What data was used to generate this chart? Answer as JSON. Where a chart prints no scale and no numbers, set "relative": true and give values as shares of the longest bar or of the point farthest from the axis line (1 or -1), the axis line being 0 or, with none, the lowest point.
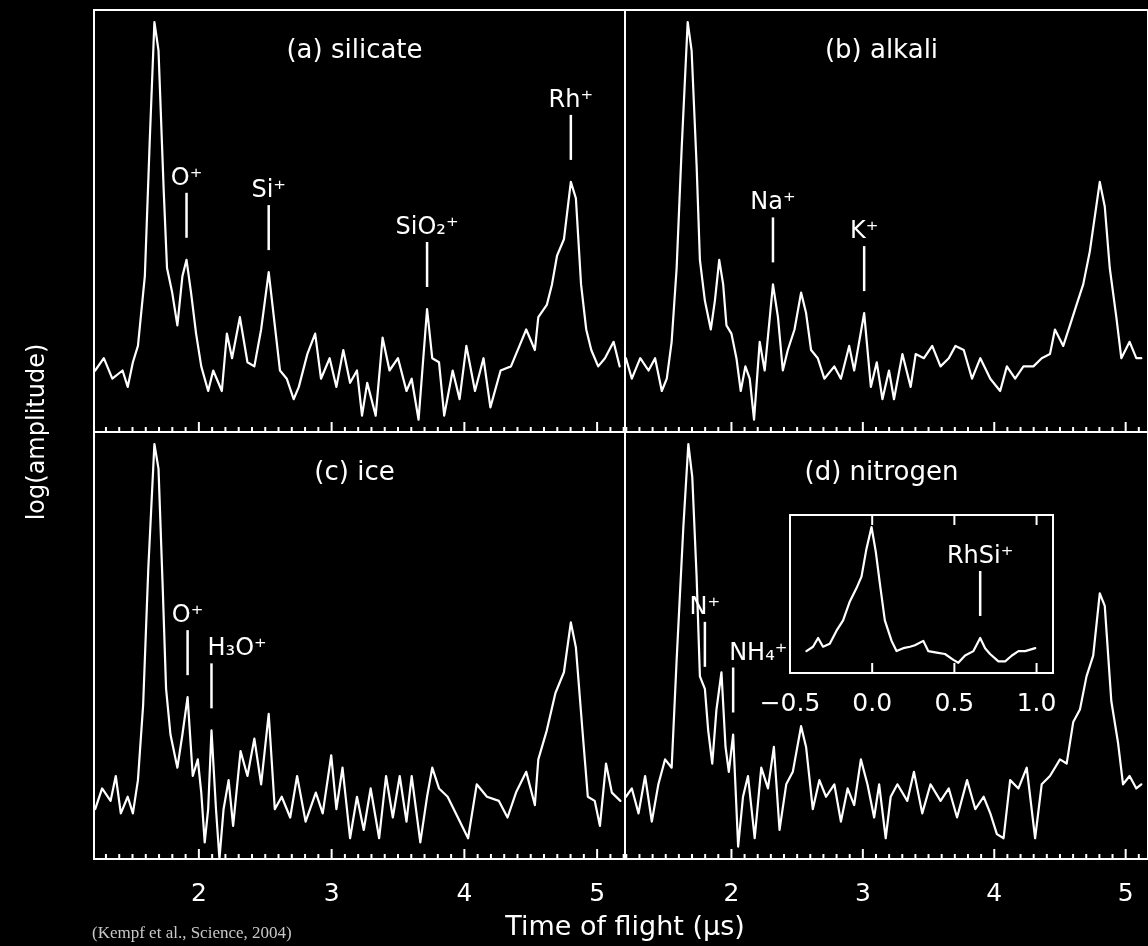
{
  "chart_data": [
    {
      "type": "line",
      "title": "(a) silicate",
      "ylabel": "log(amplitude)",
      "relative": true,
      "tick_labels": false,
      "color": "#ffffff",
      "xlim": [
        1.21,
        5.21
      ],
      "xticks": [
        {
          "value": 1.3,
          "label": null
        },
        {
          "value": 1.4,
          "label": null
        },
        {
          "value": 1.5,
          "label": null
        },
        {
          "value": 1.6,
          "label": null
        },
        {
          "value": 1.7,
          "label": null
        },
        {
          "value": 1.8,
          "label": null
        },
        {
          "value": 1.9,
          "label": null
        },
        2,
        {
          "value": 2.1,
          "label": null
        },
        {
          "value": 2.2,
          "label": null
        },
        {
          "value": 2.3,
          "label": null
        },
        {
          "value": 2.4,
          "label": null
        },
        {
          "value": 2.5,
          "label": null
        },
        {
          "value": 2.6,
          "label": null
        },
        {
          "value": 2.7,
          "label": null
        },
        {
          "value": 2.8,
          "label": null
        },
        {
          "value": 2.9,
          "label": null
        },
        3,
        {
          "value": 3.1,
          "label": null
        },
        {
          "value": 3.2,
          "label": null
        },
        {
          "value": 3.3,
          "label": null
        },
        {
          "value": 3.4,
          "label": null
        },
        {
          "value": 3.5,
          "label": null
        },
        {
          "value": 3.6,
          "label": null
        },
        {
          "value": 3.7,
          "label": null
        },
        {
          "value": 3.8,
          "label": null
        },
        {
          "value": 3.9,
          "label": null
        },
        4,
        {
          "value": 4.1,
          "label": null
        },
        {
          "value": 4.2,
          "label": null
        },
        {
          "value": 4.3,
          "label": null
        },
        {
          "value": 4.4,
          "label": null
        },
        {
          "value": 4.5,
          "label": null
        },
        {
          "value": 4.6,
          "label": null
        },
        {
          "value": 4.7,
          "label": null
        },
        {
          "value": 4.8,
          "label": null
        },
        {
          "value": 4.9,
          "label": null
        },
        5,
        {
          "value": 5.1,
          "label": null
        },
        {
          "value": 5.2,
          "label": null
        }
      ],
      "x": [
        1.219,
        1.284,
        1.348,
        1.425,
        1.464,
        1.503,
        1.541,
        1.593,
        1.631,
        1.665,
        1.696,
        1.735,
        1.76,
        1.799,
        1.838,
        1.876,
        1.907,
        1.941,
        1.979,
        2.018,
        2.07,
        2.108,
        2.173,
        2.211,
        2.25,
        2.309,
        2.366,
        2.418,
        2.469,
        2.526,
        2.572,
        2.611,
        2.662,
        2.714,
        2.753,
        2.817,
        2.876,
        2.92,
        2.985,
        3.036,
        3.088,
        3.139,
        3.191,
        3.229,
        3.268,
        3.332,
        3.384,
        3.436,
        3.5,
        3.564,
        3.603,
        3.655,
        3.719,
        3.758,
        3.809,
        3.848,
        3.912,
        3.964,
        4.015,
        4.08,
        4.144,
        4.196,
        4.273,
        4.351,
        4.415,
        4.466,
        4.531,
        4.557,
        4.621,
        4.66,
        4.698,
        4.75,
        4.802,
        4.84,
        4.879,
        4.918,
        4.956,
        5.008,
        5.059,
        5.124,
        5.17
      ],
      "values": [
        0.15,
        0.18,
        0.13,
        0.15,
        0.11,
        0.17,
        0.21,
        0.38,
        0.72,
        1.0,
        0.93,
        0.59,
        0.4,
        0.34,
        0.26,
        0.38,
        0.42,
        0.34,
        0.24,
        0.16,
        0.1,
        0.15,
        0.1,
        0.24,
        0.18,
        0.28,
        0.17,
        0.16,
        0.25,
        0.39,
        0.26,
        0.15,
        0.13,
        0.08,
        0.11,
        0.19,
        0.24,
        0.13,
        0.18,
        0.11,
        0.2,
        0.12,
        0.15,
        0.04,
        0.12,
        0.04,
        0.23,
        0.15,
        0.18,
        0.1,
        0.13,
        0.03,
        0.3,
        0.18,
        0.17,
        0.04,
        0.15,
        0.08,
        0.21,
        0.1,
        0.18,
        0.06,
        0.15,
        0.16,
        0.21,
        0.25,
        0.2,
        0.28,
        0.31,
        0.36,
        0.43,
        0.47,
        0.61,
        0.57,
        0.36,
        0.25,
        0.2,
        0.16,
        0.18,
        0.22,
        0.16
      ],
      "annotations": [
        {
          "text": "O⁺",
          "x": 1.907,
          "y": 0.42
        },
        {
          "text": "Si⁺",
          "x": 2.526,
          "y": 0.39
        },
        {
          "text": "SiO₂⁺",
          "x": 3.719,
          "y": 0.3
        },
        {
          "text": "Rh⁺",
          "x": 4.802,
          "y": 0.61
        }
      ]
    },
    {
      "type": "line",
      "title": "(b) alkali",
      "relative": true,
      "tick_labels": false,
      "color": "#ffffff",
      "xlim": [
        1.19,
        5.17
      ],
      "xticks": [
        {
          "value": 1.2,
          "label": null
        },
        {
          "value": 1.3,
          "label": null
        },
        {
          "value": 1.4,
          "label": null
        },
        {
          "value": 1.5,
          "label": null
        },
        {
          "value": 1.6,
          "label": null
        },
        {
          "value": 1.7,
          "label": null
        },
        {
          "value": 1.8,
          "label": null
        },
        {
          "value": 1.9,
          "label": null
        },
        2,
        {
          "value": 2.1,
          "label": null
        },
        {
          "value": 2.2,
          "label": null
        },
        {
          "value": 2.3,
          "label": null
        },
        {
          "value": 2.4,
          "label": null
        },
        {
          "value": 2.5,
          "label": null
        },
        {
          "value": 2.6,
          "label": null
        },
        {
          "value": 2.7,
          "label": null
        },
        {
          "value": 2.8,
          "label": null
        },
        {
          "value": 2.9,
          "label": null
        },
        3,
        {
          "value": 3.1,
          "label": null
        },
        {
          "value": 3.2,
          "label": null
        },
        {
          "value": 3.3,
          "label": null
        },
        {
          "value": 3.4,
          "label": null
        },
        {
          "value": 3.5,
          "label": null
        },
        {
          "value": 3.6,
          "label": null
        },
        {
          "value": 3.7,
          "label": null
        },
        {
          "value": 3.8,
          "label": null
        },
        {
          "value": 3.9,
          "label": null
        },
        4,
        {
          "value": 4.1,
          "label": null
        },
        {
          "value": 4.2,
          "label": null
        },
        {
          "value": 4.3,
          "label": null
        },
        {
          "value": 4.4,
          "label": null
        },
        {
          "value": 4.5,
          "label": null
        },
        {
          "value": 4.6,
          "label": null
        },
        {
          "value": 4.7,
          "label": null
        },
        {
          "value": 4.8,
          "label": null
        },
        {
          "value": 4.9,
          "label": null
        },
        5,
        {
          "value": 5.1,
          "label": null
        }
      ],
      "x": [
        1.197,
        1.242,
        1.306,
        1.369,
        1.419,
        1.47,
        1.508,
        1.545,
        1.583,
        1.621,
        1.667,
        1.697,
        1.735,
        1.76,
        1.798,
        1.843,
        1.874,
        1.907,
        1.937,
        1.962,
        2.0,
        2.038,
        2.071,
        2.106,
        2.139,
        2.172,
        2.215,
        2.253,
        2.316,
        2.354,
        2.391,
        2.429,
        2.48,
        2.53,
        2.568,
        2.606,
        2.657,
        2.707,
        2.783,
        2.833,
        2.896,
        2.934,
        3.01,
        3.061,
        3.106,
        3.149,
        3.199,
        3.237,
        3.301,
        3.364,
        3.402,
        3.465,
        3.528,
        3.591,
        3.654,
        3.705,
        3.768,
        3.831,
        3.894,
        3.97,
        4.045,
        4.096,
        4.159,
        4.222,
        4.298,
        4.361,
        4.424,
        4.462,
        4.525,
        4.576,
        4.626,
        4.677,
        4.727,
        4.803,
        4.841,
        4.879,
        4.929,
        4.967,
        5.03,
        5.081,
        5.119
      ],
      "values": [
        0.18,
        0.13,
        0.18,
        0.15,
        0.18,
        0.1,
        0.13,
        0.22,
        0.4,
        0.69,
        1.0,
        0.93,
        0.65,
        0.42,
        0.32,
        0.25,
        0.32,
        0.42,
        0.36,
        0.26,
        0.24,
        0.18,
        0.1,
        0.16,
        0.13,
        0.03,
        0.22,
        0.15,
        0.36,
        0.28,
        0.15,
        0.2,
        0.25,
        0.34,
        0.29,
        0.2,
        0.18,
        0.13,
        0.16,
        0.13,
        0.21,
        0.15,
        0.29,
        0.11,
        0.17,
        0.08,
        0.15,
        0.08,
        0.19,
        0.11,
        0.19,
        0.18,
        0.21,
        0.16,
        0.18,
        0.21,
        0.2,
        0.13,
        0.18,
        0.13,
        0.1,
        0.16,
        0.13,
        0.16,
        0.16,
        0.18,
        0.19,
        0.25,
        0.21,
        0.26,
        0.31,
        0.36,
        0.44,
        0.61,
        0.55,
        0.4,
        0.28,
        0.18,
        0.22,
        0.18,
        0.18
      ],
      "annotations": [
        {
          "text": "Na⁺",
          "x": 2.316,
          "y": 0.36
        },
        {
          "text": "K⁺",
          "x": 3.01,
          "y": 0.29
        }
      ]
    },
    {
      "type": "line",
      "title": "(c) ice",
      "xlabel": "Time of flight (μs)",
      "relative": true,
      "tick_labels": "x",
      "color": "#ffffff",
      "xlim": [
        1.21,
        5.21
      ],
      "xticks": [
        {
          "value": 1.3,
          "label": null
        },
        {
          "value": 1.4,
          "label": null
        },
        {
          "value": 1.5,
          "label": null
        },
        {
          "value": 1.6,
          "label": null
        },
        {
          "value": 1.7,
          "label": null
        },
        {
          "value": 1.8,
          "label": null
        },
        {
          "value": 1.9,
          "label": null
        },
        2,
        {
          "value": 2.1,
          "label": null
        },
        {
          "value": 2.2,
          "label": null
        },
        {
          "value": 2.3,
          "label": null
        },
        {
          "value": 2.4,
          "label": null
        },
        {
          "value": 2.5,
          "label": null
        },
        {
          "value": 2.6,
          "label": null
        },
        {
          "value": 2.7,
          "label": null
        },
        {
          "value": 2.8,
          "label": null
        },
        {
          "value": 2.9,
          "label": null
        },
        3,
        {
          "value": 3.1,
          "label": null
        },
        {
          "value": 3.2,
          "label": null
        },
        {
          "value": 3.3,
          "label": null
        },
        {
          "value": 3.4,
          "label": null
        },
        {
          "value": 3.5,
          "label": null
        },
        {
          "value": 3.6,
          "label": null
        },
        {
          "value": 3.7,
          "label": null
        },
        {
          "value": 3.8,
          "label": null
        },
        {
          "value": 3.9,
          "label": null
        },
        4,
        {
          "value": 4.1,
          "label": null
        },
        {
          "value": 4.2,
          "label": null
        },
        {
          "value": 4.3,
          "label": null
        },
        {
          "value": 4.4,
          "label": null
        },
        {
          "value": 4.5,
          "label": null
        },
        {
          "value": 4.6,
          "label": null
        },
        {
          "value": 4.7,
          "label": null
        },
        {
          "value": 4.8,
          "label": null
        },
        {
          "value": 4.9,
          "label": null
        },
        5,
        {
          "value": 5.1,
          "label": null
        },
        {
          "value": 5.2,
          "label": null
        }
      ],
      "x": [
        1.219,
        1.271,
        1.335,
        1.374,
        1.412,
        1.464,
        1.503,
        1.541,
        1.58,
        1.619,
        1.665,
        1.696,
        1.727,
        1.753,
        1.786,
        1.838,
        1.876,
        1.915,
        1.954,
        1.992,
        2.018,
        2.044,
        2.07,
        2.095,
        2.129,
        2.155,
        2.186,
        2.224,
        2.258,
        2.314,
        2.366,
        2.418,
        2.469,
        2.526,
        2.572,
        2.624,
        2.688,
        2.74,
        2.804,
        2.881,
        2.933,
        2.997,
        3.036,
        3.082,
        3.139,
        3.191,
        3.242,
        3.294,
        3.358,
        3.41,
        3.461,
        3.513,
        3.564,
        3.603,
        3.668,
        3.719,
        3.758,
        3.809,
        3.874,
        3.951,
        4.028,
        4.093,
        4.17,
        4.26,
        4.325,
        4.389,
        4.466,
        4.531,
        4.557,
        4.621,
        4.686,
        4.75,
        4.802,
        4.84,
        4.892,
        4.93,
        4.982,
        5.021,
        5.067,
        5.111,
        5.175
      ],
      "values": [
        0.12,
        0.17,
        0.14,
        0.2,
        0.11,
        0.15,
        0.11,
        0.19,
        0.37,
        0.7,
        1.0,
        0.94,
        0.66,
        0.41,
        0.3,
        0.22,
        0.3,
        0.39,
        0.2,
        0.24,
        0.16,
        0.04,
        0.12,
        0.31,
        0.12,
        0.0,
        0.12,
        0.19,
        0.08,
        0.26,
        0.2,
        0.29,
        0.18,
        0.35,
        0.12,
        0.15,
        0.1,
        0.2,
        0.09,
        0.16,
        0.11,
        0.25,
        0.12,
        0.22,
        0.05,
        0.15,
        0.07,
        0.17,
        0.05,
        0.2,
        0.1,
        0.2,
        0.09,
        0.2,
        0.04,
        0.15,
        0.22,
        0.17,
        0.15,
        0.1,
        0.05,
        0.18,
        0.15,
        0.14,
        0.1,
        0.16,
        0.21,
        0.13,
        0.24,
        0.31,
        0.4,
        0.45,
        0.57,
        0.51,
        0.3,
        0.15,
        0.14,
        0.08,
        0.23,
        0.16,
        0.14
      ],
      "annotations": [
        {
          "text": "O⁺",
          "x": 1.915,
          "y": 0.39
        },
        {
          "text": "H₃O⁺",
          "x": 2.095,
          "y": 0.31
        },
        "(Kempf et al., Science, 2004)"
      ]
    },
    {
      "type": "line",
      "title": "(d) nitrogen",
      "relative": true,
      "tick_labels": "x",
      "color": "#ffffff",
      "xlim": [
        1.19,
        5.17
      ],
      "xticks": [
        {
          "value": 1.2,
          "label": null
        },
        {
          "value": 1.3,
          "label": null
        },
        {
          "value": 1.4,
          "label": null
        },
        {
          "value": 1.5,
          "label": null
        },
        {
          "value": 1.6,
          "label": null
        },
        {
          "value": 1.7,
          "label": null
        },
        {
          "value": 1.8,
          "label": null
        },
        {
          "value": 1.9,
          "label": null
        },
        2,
        {
          "value": 2.1,
          "label": null
        },
        {
          "value": 2.2,
          "label": null
        },
        {
          "value": 2.3,
          "label": null
        },
        {
          "value": 2.4,
          "label": null
        },
        {
          "value": 2.5,
          "label": null
        },
        {
          "value": 2.6,
          "label": null
        },
        {
          "value": 2.7,
          "label": null
        },
        {
          "value": 2.8,
          "label": null
        },
        {
          "value": 2.9,
          "label": null
        },
        3,
        {
          "value": 3.1,
          "label": null
        },
        {
          "value": 3.2,
          "label": null
        },
        {
          "value": 3.3,
          "label": null
        },
        {
          "value": 3.4,
          "label": null
        },
        {
          "value": 3.5,
          "label": null
        },
        {
          "value": 3.6,
          "label": null
        },
        {
          "value": 3.7,
          "label": null
        },
        {
          "value": 3.8,
          "label": null
        },
        {
          "value": 3.9,
          "label": null
        },
        4,
        {
          "value": 4.1,
          "label": null
        },
        {
          "value": 4.2,
          "label": null
        },
        {
          "value": 4.3,
          "label": null
        },
        {
          "value": 4.4,
          "label": null
        },
        {
          "value": 4.5,
          "label": null
        },
        {
          "value": 4.6,
          "label": null
        },
        {
          "value": 4.7,
          "label": null
        },
        {
          "value": 4.8,
          "label": null
        },
        {
          "value": 4.9,
          "label": null
        },
        5,
        {
          "value": 5.1,
          "label": null
        }
      ],
      "x": [
        1.197,
        1.242,
        1.293,
        1.343,
        1.394,
        1.444,
        1.495,
        1.545,
        1.583,
        1.634,
        1.672,
        1.702,
        1.735,
        1.76,
        1.798,
        1.823,
        1.854,
        1.886,
        1.924,
        1.955,
        1.98,
        2.013,
        2.051,
        2.088,
        2.126,
        2.177,
        2.227,
        2.278,
        2.323,
        2.366,
        2.417,
        2.467,
        2.53,
        2.568,
        2.619,
        2.669,
        2.72,
        2.783,
        2.833,
        2.884,
        2.934,
        2.985,
        3.035,
        3.086,
        3.124,
        3.174,
        3.212,
        3.263,
        3.338,
        3.389,
        3.452,
        3.515,
        3.591,
        3.654,
        3.717,
        3.793,
        3.856,
        3.919,
        3.97,
        4.02,
        4.071,
        4.121,
        4.184,
        4.247,
        4.311,
        4.361,
        4.424,
        4.5,
        4.551,
        4.601,
        4.652,
        4.702,
        4.753,
        4.803,
        4.841,
        4.891,
        4.942,
        4.98,
        5.03,
        5.081,
        5.119
      ],
      "values": [
        0.15,
        0.17,
        0.11,
        0.2,
        0.09,
        0.18,
        0.24,
        0.22,
        0.48,
        0.8,
        1.0,
        0.92,
        0.68,
        0.44,
        0.41,
        0.31,
        0.23,
        0.36,
        0.45,
        0.27,
        0.21,
        0.3,
        0.03,
        0.15,
        0.2,
        0.05,
        0.22,
        0.17,
        0.27,
        0.07,
        0.18,
        0.21,
        0.32,
        0.27,
        0.12,
        0.19,
        0.15,
        0.18,
        0.09,
        0.17,
        0.13,
        0.24,
        0.18,
        0.1,
        0.18,
        0.05,
        0.15,
        0.18,
        0.14,
        0.21,
        0.11,
        0.18,
        0.14,
        0.17,
        0.1,
        0.19,
        0.12,
        0.15,
        0.11,
        0.06,
        0.05,
        0.19,
        0.17,
        0.22,
        0.05,
        0.18,
        0.2,
        0.24,
        0.23,
        0.33,
        0.36,
        0.44,
        0.49,
        0.64,
        0.61,
        0.38,
        0.28,
        0.18,
        0.2,
        0.17,
        0.18
      ],
      "annotations": [
        {
          "text": "N⁺",
          "x": 1.798,
          "y": 0.41
        },
        {
          "text": "NH₄⁺",
          "x": 2.013,
          "y": 0.3
        }
      ]
    },
    {
      "type": "line",
      "relative": true,
      "color": "#ffffff",
      "xlim": [
        -0.5,
        1.1
      ],
      "xticks": [
        {
          "value": -0.5,
          "label": "−0.5"
        },
        {
          "value": 0,
          "label": "0.0"
        },
        {
          "value": 0.5,
          "label": "0.5"
        },
        {
          "value": 1,
          "label": "1.0"
        }
      ],
      "x": [
        -0.4,
        -0.36,
        -0.329,
        -0.299,
        -0.258,
        -0.217,
        -0.177,
        -0.136,
        -0.096,
        -0.065,
        -0.035,
        -0.004,
        0.022,
        0.047,
        0.077,
        0.118,
        0.148,
        0.189,
        0.23,
        0.26,
        0.311,
        0.341,
        0.392,
        0.443,
        0.494,
        0.524,
        0.565,
        0.616,
        0.657,
        0.687,
        0.717,
        0.768,
        0.809,
        0.85,
        0.89,
        0.931,
        0.992
      ],
      "values": [
        0.15,
        0.18,
        0.24,
        0.18,
        0.2,
        0.29,
        0.36,
        0.49,
        0.58,
        0.66,
        0.85,
        1.0,
        0.83,
        0.61,
        0.36,
        0.22,
        0.15,
        0.17,
        0.18,
        0.19,
        0.22,
        0.15,
        0.14,
        0.13,
        0.09,
        0.07,
        0.12,
        0.15,
        0.24,
        0.17,
        0.13,
        0.08,
        0.08,
        0.12,
        0.15,
        0.15,
        0.17
      ],
      "annotations": [
        {
          "text": "RhSi⁺",
          "x": 0.657,
          "y": 0.24
        }
      ]
    }
  ]
}
